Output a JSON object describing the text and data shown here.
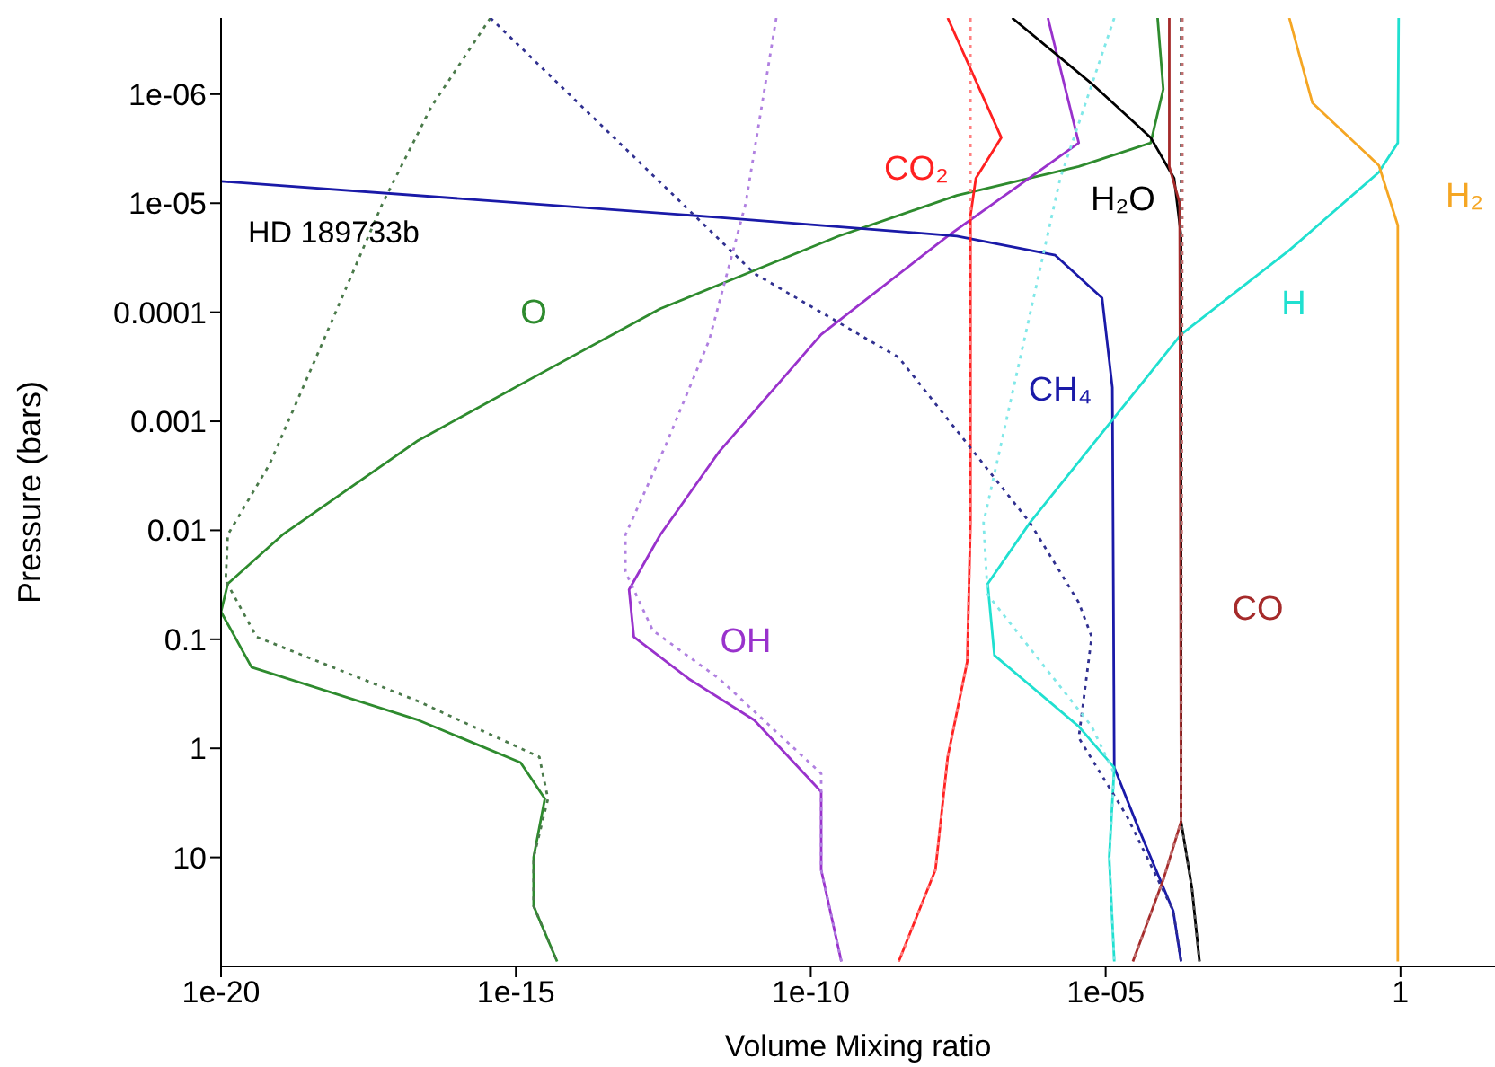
{
  "chart_data": {
    "type": "line",
    "xlabel": "Volume Mixing ratio",
    "ylabel": "Pressure (bars)",
    "log": "xy",
    "xlim": [
      1e-20,
      40
    ],
    "ylim": [
      100,
      2e-07
    ],
    "xticks": [
      {
        "value": 1e-20,
        "label": "1e-20"
      },
      {
        "value": 1e-15,
        "label": "1e-15"
      },
      {
        "value": 1e-10,
        "label": "1e-10"
      },
      {
        "value": 1e-05,
        "label": "1e-05"
      },
      1
    ],
    "yticks": [
      {
        "value": 1e-06,
        "label": "1e-06"
      },
      {
        "value": 1e-05,
        "label": "1e-05"
      },
      0.0001,
      0.001,
      0.01,
      0.1,
      1,
      10
    ],
    "series": [
      {
        "name": "O",
        "color": "#2e8b2e",
        "line_style": "solid",
        "x": [
          7.6e-05,
          9.5e-05,
          5.8e-05,
          3.5e-06,
          3e-08,
          3e-10,
          2.8e-12,
          2.8e-13,
          2.5e-15,
          2.2e-17,
          1.1e-19,
          1.3e-20,
          1e-20,
          3.3e-20,
          2.2e-17,
          1.2e-15,
          3.1e-15,
          2e-15,
          2e-15,
          5e-15
        ],
        "values": [
          2e-07,
          9e-07,
          2.8e-06,
          4.6e-06,
          8.5e-06,
          2e-05,
          5.6e-05,
          9.3e-05,
          0.00037,
          0.0015,
          0.011,
          0.031,
          0.056,
          0.18,
          0.55,
          1.35,
          2.9,
          10,
          28,
          90
        ]
      },
      {
        "name": "OH",
        "color": "#9932cc",
        "line_style": "solid",
        "x": [
          1.05e-06,
          3.5e-06,
          2.1e-08,
          1.5e-10,
          2.8e-12,
          2.8e-13,
          8.3e-14,
          1e-13,
          8.5e-13,
          1.1e-11,
          1.5e-10,
          1.5e-10,
          3.3e-10
        ],
        "values": [
          2e-07,
          2.8e-06,
          2e-05,
          0.00016,
          0.0019,
          0.011,
          0.035,
          0.095,
          0.23,
          0.55,
          2.5,
          13,
          90
        ]
      },
      {
        "name": "CH₄",
        "color": "#1a1aa8",
        "line_style": "solid",
        "x": [
          1e-20,
          2.8e-12,
          3e-08,
          1.4e-06,
          8.7e-06,
          1.3e-05,
          1.4e-05,
          3.5e-05,
          0.00014,
          0.00019
        ],
        "values": [
          6.3e-06,
          1.35e-05,
          2e-05,
          3e-05,
          7.4e-05,
          0.00049,
          1.5,
          5.2,
          31,
          90
        ]
      },
      {
        "name": "CO₂",
        "color": "#ff2020",
        "line_style": "solid",
        "x": [
          2.1e-08,
          1.7e-07,
          6.3e-08,
          5.1e-08,
          5.1e-08,
          4.5e-08,
          2.1e-08,
          1.3e-08,
          3.1e-09
        ],
        "values": [
          2e-07,
          2.5e-06,
          5.9e-06,
          1.3e-05,
          0.0085,
          0.16,
          1.2,
          13,
          90
        ]
      },
      {
        "name": "H₂O",
        "color": "#000000",
        "line_style": "solid",
        "x": [
          2.6e-07,
          5.8e-06,
          5.8e-05,
          0.000145,
          0.00019,
          0.00019,
          0.00029,
          0.00039
        ],
        "values": [
          2e-07,
          8e-07,
          2.5e-06,
          5.9e-06,
          2e-05,
          4.7,
          19,
          90
        ]
      },
      {
        "name": "H",
        "color": "#20e0d0",
        "line_style": "solid",
        "x": [
          0.93,
          0.9,
          0.43,
          0.013,
          0.00019,
          5.2e-07,
          1e-07,
          1.3e-07,
          3.5e-06,
          1.4e-05,
          1.15e-05,
          1.4e-05
        ],
        "values": [
          2e-07,
          2.8e-06,
          5.2e-06,
          2.7e-05,
          0.00016,
          0.0085,
          0.031,
          0.14,
          0.63,
          1.5,
          10,
          90
        ]
      },
      {
        "name": "CO",
        "color": "#a52a2a",
        "line_style": "solid",
        "x": [
          0.00012,
          0.00012,
          0.00018,
          0.00019,
          9.5e-05,
          2.9e-05
        ],
        "values": [
          2e-07,
          4.6e-06,
          1e-05,
          4.7,
          16,
          90
        ]
      },
      {
        "name": "H₂",
        "color": "#f5a623",
        "line_style": "solid",
        "x": [
          0.013,
          0.032,
          0.43,
          0.9,
          0.9
        ],
        "values": [
          2e-07,
          1.2e-06,
          4.5e-06,
          1.6e-05,
          90
        ]
      },
      {
        "color": "#4a7a4a",
        "line_style": "dotted",
        "x": [
          3.7e-16,
          3.7e-17,
          5.5e-18,
          5.5e-19,
          6.6e-20,
          1.3e-20,
          1.2e-20,
          4e-20,
          2.2e-17,
          2.5e-15,
          3.5e-15,
          2e-15,
          2e-15,
          5e-15
        ],
        "values": [
          2e-07,
          1.3e-06,
          1e-05,
          0.00018,
          0.0025,
          0.011,
          0.029,
          0.095,
          0.37,
          1.2,
          2.9,
          10,
          28,
          90
        ]
      },
      {
        "color": "#b080e0",
        "line_style": "dotted",
        "x": [
          2.6e-11,
          7.9e-12,
          1.9e-12,
          3.4e-13,
          7.2e-14,
          7.2e-14,
          2.1e-13,
          2.8e-12,
          1.5e-10,
          1.5e-10,
          3.3e-10
        ],
        "values": [
          2e-07,
          1e-05,
          0.00018,
          0.0017,
          0.011,
          0.024,
          0.083,
          0.23,
          1.7,
          13,
          90
        ]
      },
      {
        "color": "#303090",
        "line_style": "dotted",
        "x": [
          3.7e-16,
          1.1e-11,
          3.1e-09,
          5.2e-07,
          3.5e-06,
          5.8e-06,
          3.5e-06,
          2.3e-05,
          0.00014,
          0.00019
        ],
        "values": [
          2e-07,
          4.4e-05,
          0.00026,
          0.0085,
          0.046,
          0.095,
          0.8,
          4.2,
          31,
          90
        ]
      },
      {
        "color": "#ff8080",
        "line_style": "dotted",
        "x": [
          5.1e-08,
          5.1e-08,
          4.5e-08,
          2.1e-08,
          1.3e-08,
          3.1e-09
        ],
        "values": [
          2e-07,
          0.0085,
          0.16,
          1.2,
          13,
          90
        ]
      },
      {
        "color": "#555555",
        "line_style": "dotted",
        "x": [
          0.00019,
          0.00019,
          0.00029,
          0.00039
        ],
        "values": [
          2e-07,
          4.7,
          19,
          90
        ]
      },
      {
        "color": "#80e8e8",
        "line_style": "dotted",
        "x": [
          1.4e-05,
          1.7e-06,
          8.5e-08,
          1e-07,
          5.8e-06,
          1.4e-05,
          1.15e-05,
          1.4e-05
        ],
        "values": [
          2e-07,
          5.9e-06,
          0.0085,
          0.039,
          0.63,
          1.7,
          10,
          90
        ]
      },
      {
        "color": "#c07070",
        "line_style": "dotted",
        "x": [
          0.0002,
          0.0002,
          0.00019,
          9.5e-05,
          2.9e-05
        ],
        "values": [
          2e-07,
          1e-05,
          4.7,
          16,
          90
        ]
      }
    ],
    "annotations": [
      "HD 189733b"
    ]
  }
}
